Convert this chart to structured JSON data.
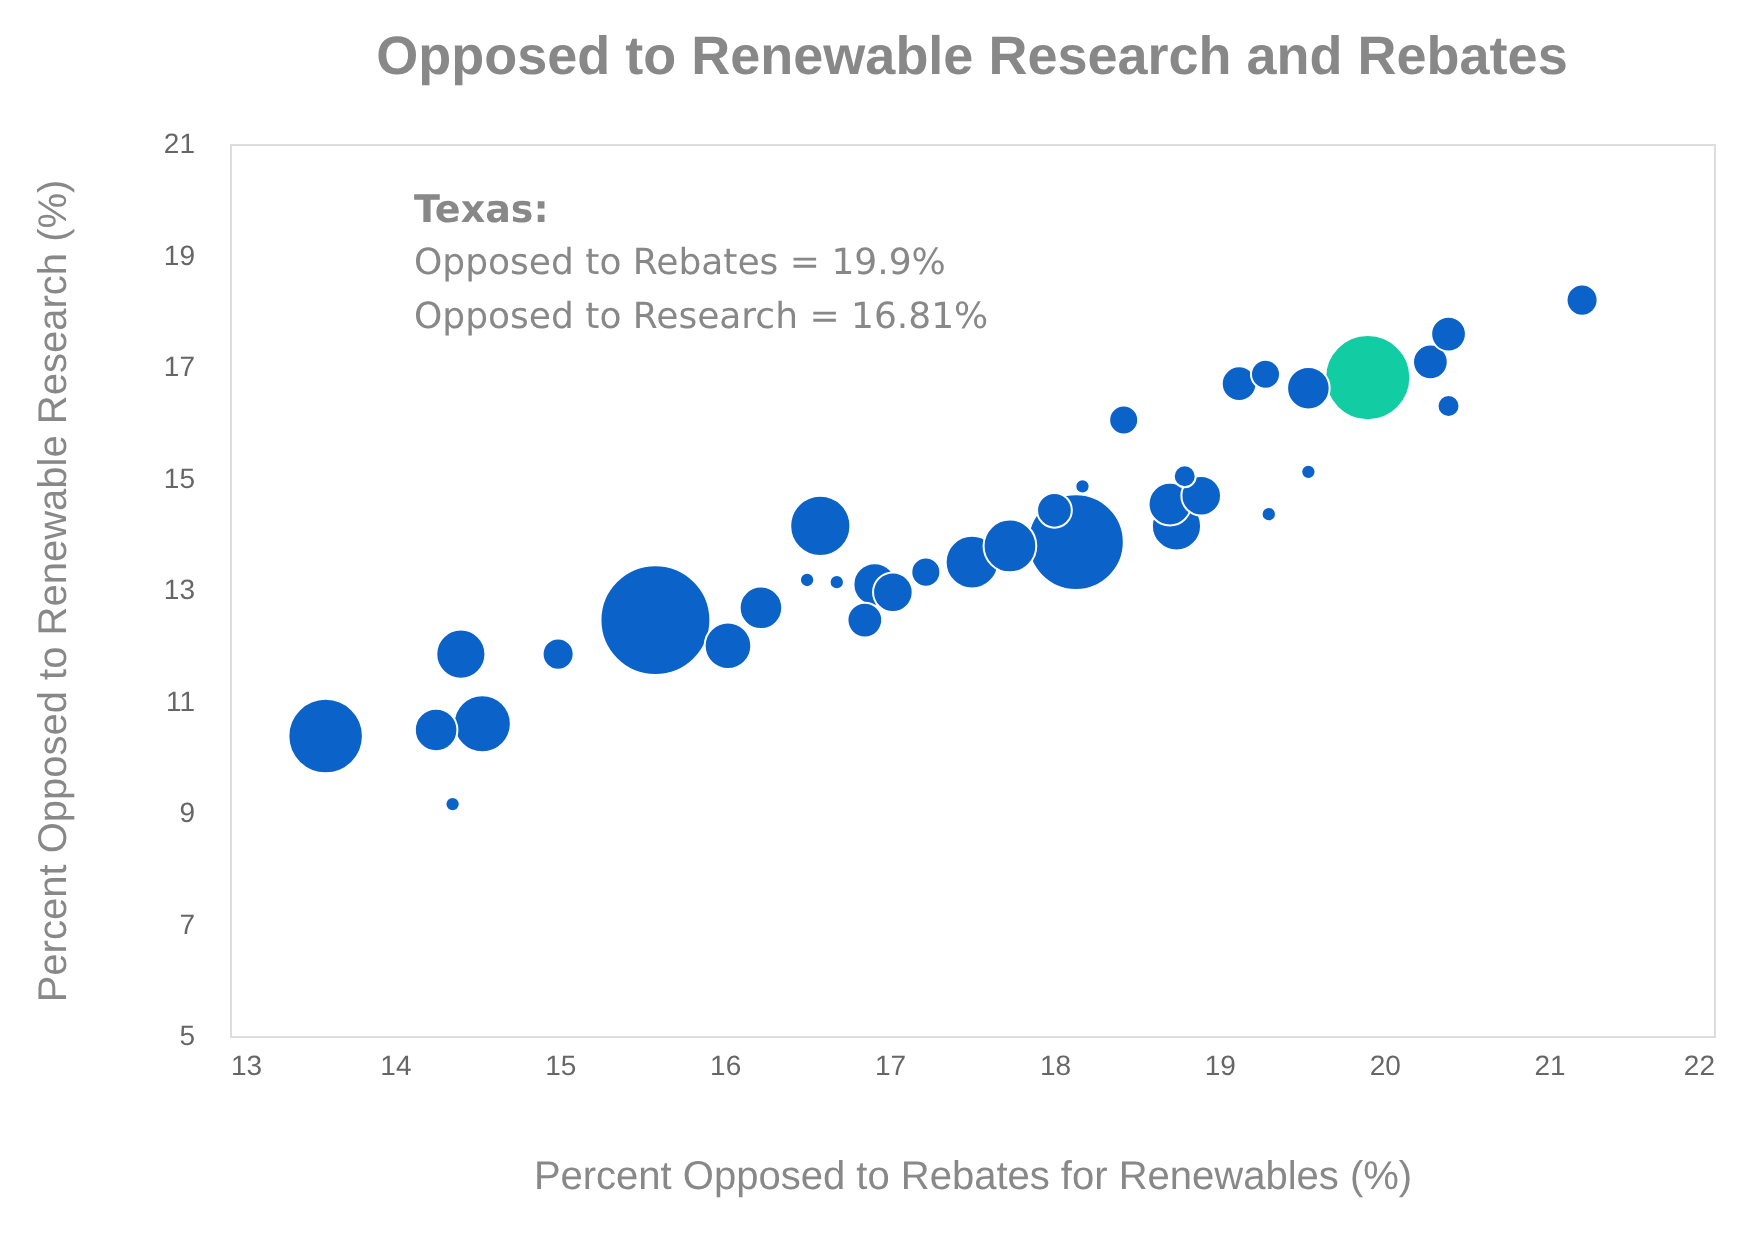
{
  "chart_data": {
    "type": "bubble",
    "title": "Opposed to Renewable Research and Rebates",
    "xlabel": "Percent Opposed to Rebates for Renewables (%)",
    "ylabel": "Percent Opposed to Renewable Research (%)",
    "annotations": [
      "Texas:",
      "Opposed to Rebates = 19.9%",
      "Opposed to Research = 16.81%"
    ],
    "x": [
      13.58,
      14.25,
      14.53,
      14.4,
      14.35,
      14.99,
      15.58,
      16.02,
      16.22,
      16.5,
      16.58,
      16.68,
      16.85,
      16.91,
      17.02,
      17.22,
      17.5,
      17.73,
      18.0,
      18.13,
      18.17,
      18.42,
      18.7,
      18.74,
      18.79,
      18.89,
      19.12,
      19.28,
      19.3,
      19.54,
      19.54,
      19.9,
      20.28,
      20.39,
      20.39,
      21.2
    ],
    "values": [
      10.38,
      10.49,
      10.6,
      11.85,
      9.16,
      11.85,
      12.46,
      12.0,
      12.68,
      13.18,
      14.15,
      13.14,
      12.46,
      13.1,
      12.96,
      13.32,
      13.5,
      13.79,
      14.43,
      13.86,
      14.86,
      16.05,
      14.54,
      14.15,
      15.04,
      14.69,
      16.7,
      16.87,
      14.36,
      16.62,
      15.12,
      16.81,
      17.09,
      17.59,
      16.3,
      18.2
    ],
    "sizes": [
      0.46,
      0.15,
      0.27,
      0.2,
      0.017,
      0.08,
      1,
      0.18,
      0.15,
      0.017,
      0.3,
      0.017,
      0.1,
      0.15,
      0.13,
      0.07,
      0.23,
      0.23,
      0.1,
      0.76,
      0.017,
      0.07,
      0.15,
      0.2,
      0.04,
      0.13,
      0.1,
      0.07,
      0.017,
      0.15,
      0.017,
      0.6,
      0.1,
      0.1,
      0.04,
      0.08
    ],
    "colors": [
      "#0b63c9",
      "#0b63c9",
      "#0b63c9",
      "#0b63c9",
      "#0b63c9",
      "#0b63c9",
      "#0b63c9",
      "#0b63c9",
      "#0b63c9",
      "#0b63c9",
      "#0b63c9",
      "#0b63c9",
      "#0b63c9",
      "#0b63c9",
      "#0b63c9",
      "#0b63c9",
      "#0b63c9",
      "#0b63c9",
      "#0b63c9",
      "#0b63c9",
      "#0b63c9",
      "#0b63c9",
      "#0b63c9",
      "#0b63c9",
      "#0b63c9",
      "#0b63c9",
      "#0b63c9",
      "#0b63c9",
      "#0b63c9",
      "#0b63c9",
      "#0b63c9",
      "#12cca4",
      "#0b63c9",
      "#0b63c9",
      "#0b63c9",
      "#0b63c9"
    ],
    "xlim": [
      13,
      22
    ],
    "xticks": [
      13,
      14,
      15,
      16,
      17,
      18,
      19,
      20,
      21,
      22
    ],
    "ylim": [
      5,
      21
    ],
    "yticks": [
      5,
      7,
      9,
      11,
      13,
      15,
      17,
      19,
      21
    ],
    "grid": false
  }
}
